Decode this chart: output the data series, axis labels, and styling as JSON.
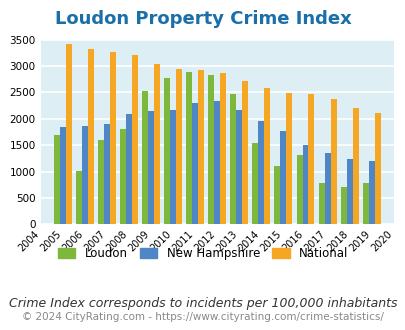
{
  "title": "Loudon Property Crime Index",
  "years": [
    2004,
    2005,
    2006,
    2007,
    2008,
    2009,
    2010,
    2011,
    2012,
    2013,
    2014,
    2015,
    2016,
    2017,
    2018,
    2019,
    2020
  ],
  "loudon": [
    null,
    1700,
    1020,
    1590,
    1800,
    2530,
    2780,
    2880,
    2830,
    2470,
    1550,
    1100,
    1310,
    780,
    700,
    780,
    null
  ],
  "new_hampshire": [
    null,
    1850,
    1870,
    1900,
    2090,
    2150,
    2170,
    2290,
    2340,
    2170,
    1960,
    1760,
    1500,
    1360,
    1240,
    1210,
    null
  ],
  "national": [
    null,
    3420,
    3330,
    3260,
    3210,
    3040,
    2950,
    2920,
    2860,
    2720,
    2590,
    2490,
    2470,
    2380,
    2200,
    2110,
    null
  ],
  "bar_colors": {
    "loudon": "#7db73b",
    "new_hampshire": "#4f86c6",
    "national": "#f5a623"
  },
  "ylim": [
    0,
    3500
  ],
  "yticks": [
    0,
    500,
    1000,
    1500,
    2000,
    2500,
    3000,
    3500
  ],
  "bg_color": "#ddeef5",
  "grid_color": "#ffffff",
  "title_color": "#1a6fa8",
  "subtitle": "Crime Index corresponds to incidents per 100,000 inhabitants",
  "footer": "© 2024 CityRating.com - https://www.cityrating.com/crime-statistics/",
  "legend_labels": [
    "Loudon",
    "New Hampshire",
    "National"
  ],
  "title_fontsize": 13,
  "subtitle_fontsize": 9,
  "footer_fontsize": 7.5
}
